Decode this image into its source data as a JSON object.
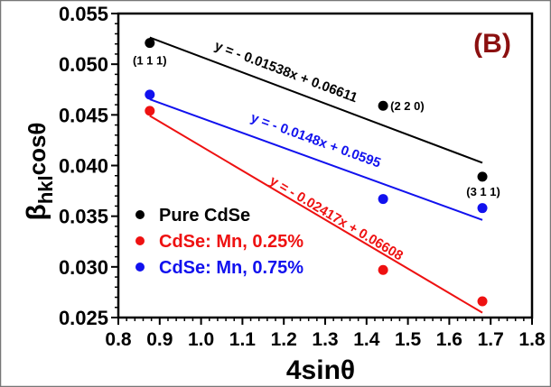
{
  "chart_data": {
    "type": "scatter",
    "panel_label": "(B)",
    "xlabel": "4sinθ",
    "ylabel_main": "β",
    "ylabel_sub": "hkl",
    "ylabel_tail": "cosθ",
    "xlim": [
      0.8,
      1.8
    ],
    "ylim": [
      0.025,
      0.055
    ],
    "xticks": [
      "0.8",
      "0.9",
      "1.0",
      "1.1",
      "1.2",
      "1.3",
      "1.4",
      "1.5",
      "1.6",
      "1.7",
      "1.8"
    ],
    "yticks": [
      "0.025",
      "0.030",
      "0.035",
      "0.040",
      "0.045",
      "0.050",
      "0.055"
    ],
    "grid": false,
    "legend_position": "bottom-left",
    "x": [
      0.876,
      1.44,
      1.68
    ],
    "point_labels": [
      "(1 1 1)",
      "(2 2 0)",
      "(3 1 1)"
    ],
    "series": [
      {
        "name": "Pure CdSe",
        "color": "#000000",
        "values": [
          0.0521,
          0.0459,
          0.0389
        ],
        "fit": {
          "slope": -0.01538,
          "intercept": 0.06611,
          "label": "y = - 0.01538x + 0.06611"
        }
      },
      {
        "name": "CdSe: Mn, 0.25%",
        "color": "#ee1111",
        "values": [
          0.0454,
          0.0297,
          0.0266
        ],
        "fit": {
          "slope": -0.02417,
          "intercept": 0.06608,
          "label": "y = - 0.02417x + 0.06608"
        }
      },
      {
        "name": "CdSe: Mn, 0.75%",
        "color": "#1111ee",
        "values": [
          0.047,
          0.0367,
          0.0358
        ],
        "fit": {
          "slope": -0.0148,
          "intercept": 0.0595,
          "label": "y = - 0.0148x + 0.0595"
        }
      }
    ],
    "panel_label_color": "#8b1010"
  }
}
